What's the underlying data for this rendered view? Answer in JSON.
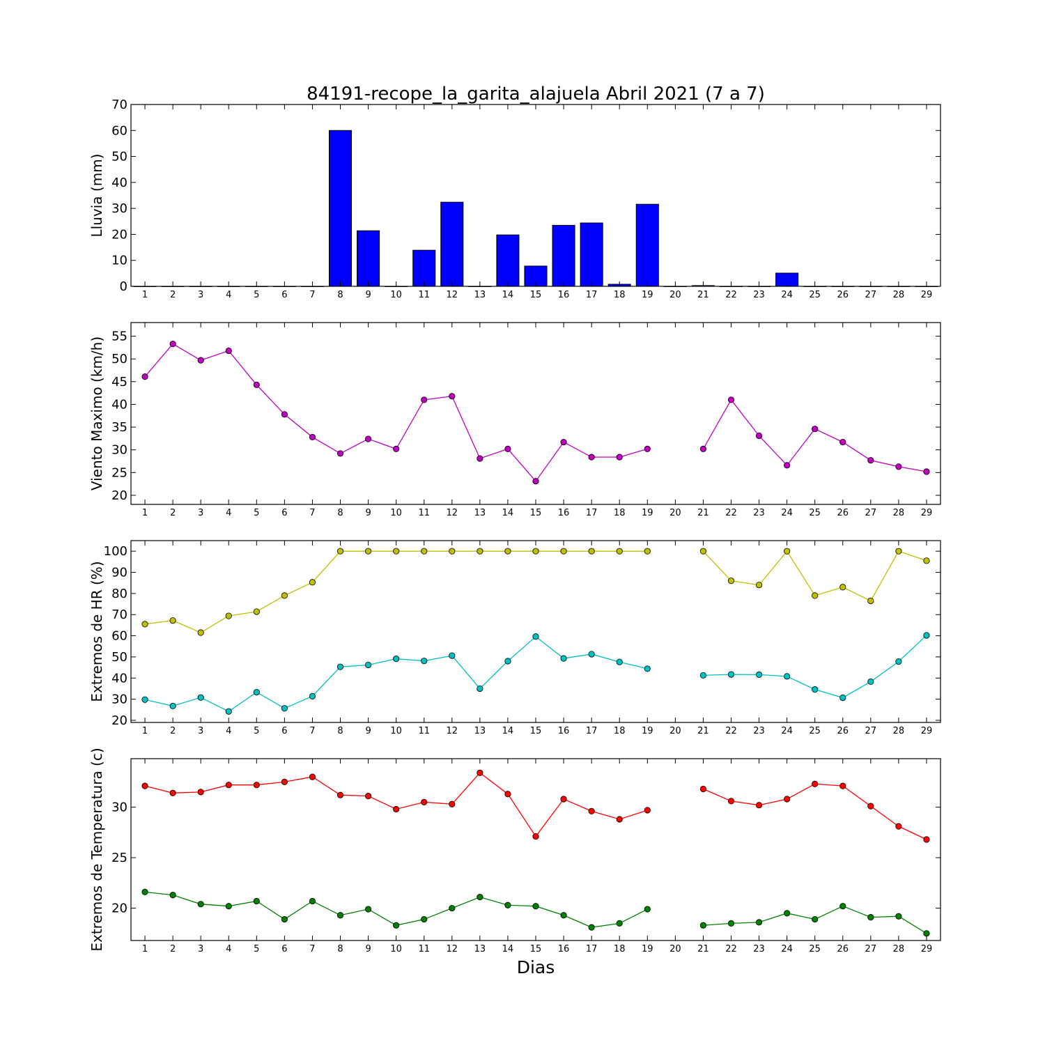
{
  "title": "84191-recope_la_garita_alajuela Abril 2021  (7 a 7)",
  "xlabel": "Dias",
  "chart_data": [
    {
      "type": "bar",
      "ylabel": "Lluvia (mm)",
      "x": [
        1,
        2,
        3,
        4,
        5,
        6,
        7,
        8,
        9,
        10,
        11,
        12,
        13,
        14,
        15,
        16,
        17,
        18,
        19,
        20,
        21,
        22,
        23,
        24,
        25,
        26,
        27,
        28,
        29
      ],
      "values": [
        0,
        0,
        0,
        0,
        0,
        0,
        0,
        60,
        21.4,
        0,
        13.9,
        32.4,
        0,
        19.8,
        7.8,
        23.5,
        24.4,
        0.8,
        31.6,
        0,
        0.3,
        0,
        0,
        5.1,
        0,
        0,
        0,
        0,
        0
      ],
      "ylim": [
        0,
        70
      ],
      "yticks": [
        0,
        10,
        20,
        30,
        40,
        50,
        60,
        70
      ],
      "color": "#0000ff"
    },
    {
      "type": "line",
      "ylabel": "Viento Maximo (km/h)",
      "x": [
        1,
        2,
        3,
        4,
        5,
        6,
        7,
        8,
        9,
        10,
        11,
        12,
        13,
        14,
        15,
        16,
        17,
        18,
        19,
        20,
        21,
        22,
        23,
        24,
        25,
        26,
        27,
        28,
        29
      ],
      "series": [
        {
          "values": [
            46.1,
            53.3,
            49.7,
            51.8,
            44.3,
            37.8,
            32.8,
            29.2,
            32.4,
            30.2,
            41.0,
            41.8,
            28.1,
            30.2,
            23.1,
            31.7,
            28.4,
            28.4,
            30.2,
            null,
            30.2,
            41.0,
            33.1,
            26.6,
            34.6,
            31.7,
            27.7,
            26.3,
            25.2
          ],
          "color": "#bf00bf"
        }
      ],
      "ylim": [
        18,
        58
      ],
      "yticks": [
        20,
        25,
        30,
        35,
        40,
        45,
        50,
        55
      ]
    },
    {
      "type": "line",
      "ylabel": "Extremos de HR (%)",
      "x": [
        1,
        2,
        3,
        4,
        5,
        6,
        7,
        8,
        9,
        10,
        11,
        12,
        13,
        14,
        15,
        16,
        17,
        18,
        19,
        20,
        21,
        22,
        23,
        24,
        25,
        26,
        27,
        28,
        29
      ],
      "series": [
        {
          "values": [
            65.5,
            67.2,
            61.5,
            69.4,
            71.4,
            79.0,
            85.3,
            100,
            100,
            100,
            100,
            100,
            100,
            100,
            100,
            100,
            100,
            100,
            100,
            null,
            100,
            86.0,
            84.0,
            100,
            79.0,
            83.0,
            76.5,
            100,
            95.5
          ],
          "color": "#bfbf00"
        },
        {
          "values": [
            29.8,
            26.8,
            30.8,
            24.2,
            33.3,
            25.7,
            31.4,
            45.3,
            46.2,
            49.1,
            48.1,
            50.6,
            35.0,
            48.0,
            59.6,
            49.3,
            51.3,
            47.6,
            44.4,
            null,
            41.3,
            41.7,
            41.6,
            40.8,
            34.6,
            30.7,
            38.3,
            47.8,
            60.2
          ],
          "color": "#00bfbf"
        }
      ],
      "ylim": [
        19,
        105
      ],
      "yticks": [
        20,
        30,
        40,
        50,
        60,
        70,
        80,
        90,
        100
      ]
    },
    {
      "type": "line",
      "ylabel": "Extremos de Temperatura (c)",
      "x": [
        1,
        2,
        3,
        4,
        5,
        6,
        7,
        8,
        9,
        10,
        11,
        12,
        13,
        14,
        15,
        16,
        17,
        18,
        19,
        20,
        21,
        22,
        23,
        24,
        25,
        26,
        27,
        28,
        29
      ],
      "series": [
        {
          "values": [
            32.1,
            31.4,
            31.5,
            32.2,
            32.2,
            32.5,
            33.0,
            31.2,
            31.1,
            29.8,
            30.5,
            30.3,
            33.4,
            31.3,
            27.1,
            30.8,
            29.6,
            28.8,
            29.7,
            null,
            31.8,
            30.6,
            30.2,
            30.8,
            32.3,
            32.1,
            30.1,
            28.1,
            26.8
          ],
          "color": "#ff0000"
        },
        {
          "values": [
            21.6,
            21.3,
            20.4,
            20.2,
            20.7,
            18.9,
            20.7,
            19.3,
            19.9,
            18.3,
            18.9,
            20.0,
            21.1,
            20.3,
            20.2,
            19.3,
            18.1,
            18.5,
            19.9,
            null,
            18.3,
            18.5,
            18.6,
            19.5,
            18.9,
            20.2,
            19.1,
            19.2,
            17.5
          ],
          "color": "#008000"
        }
      ],
      "ylim": [
        16.8,
        34.8
      ],
      "yticks": [
        20,
        25,
        30
      ]
    }
  ]
}
